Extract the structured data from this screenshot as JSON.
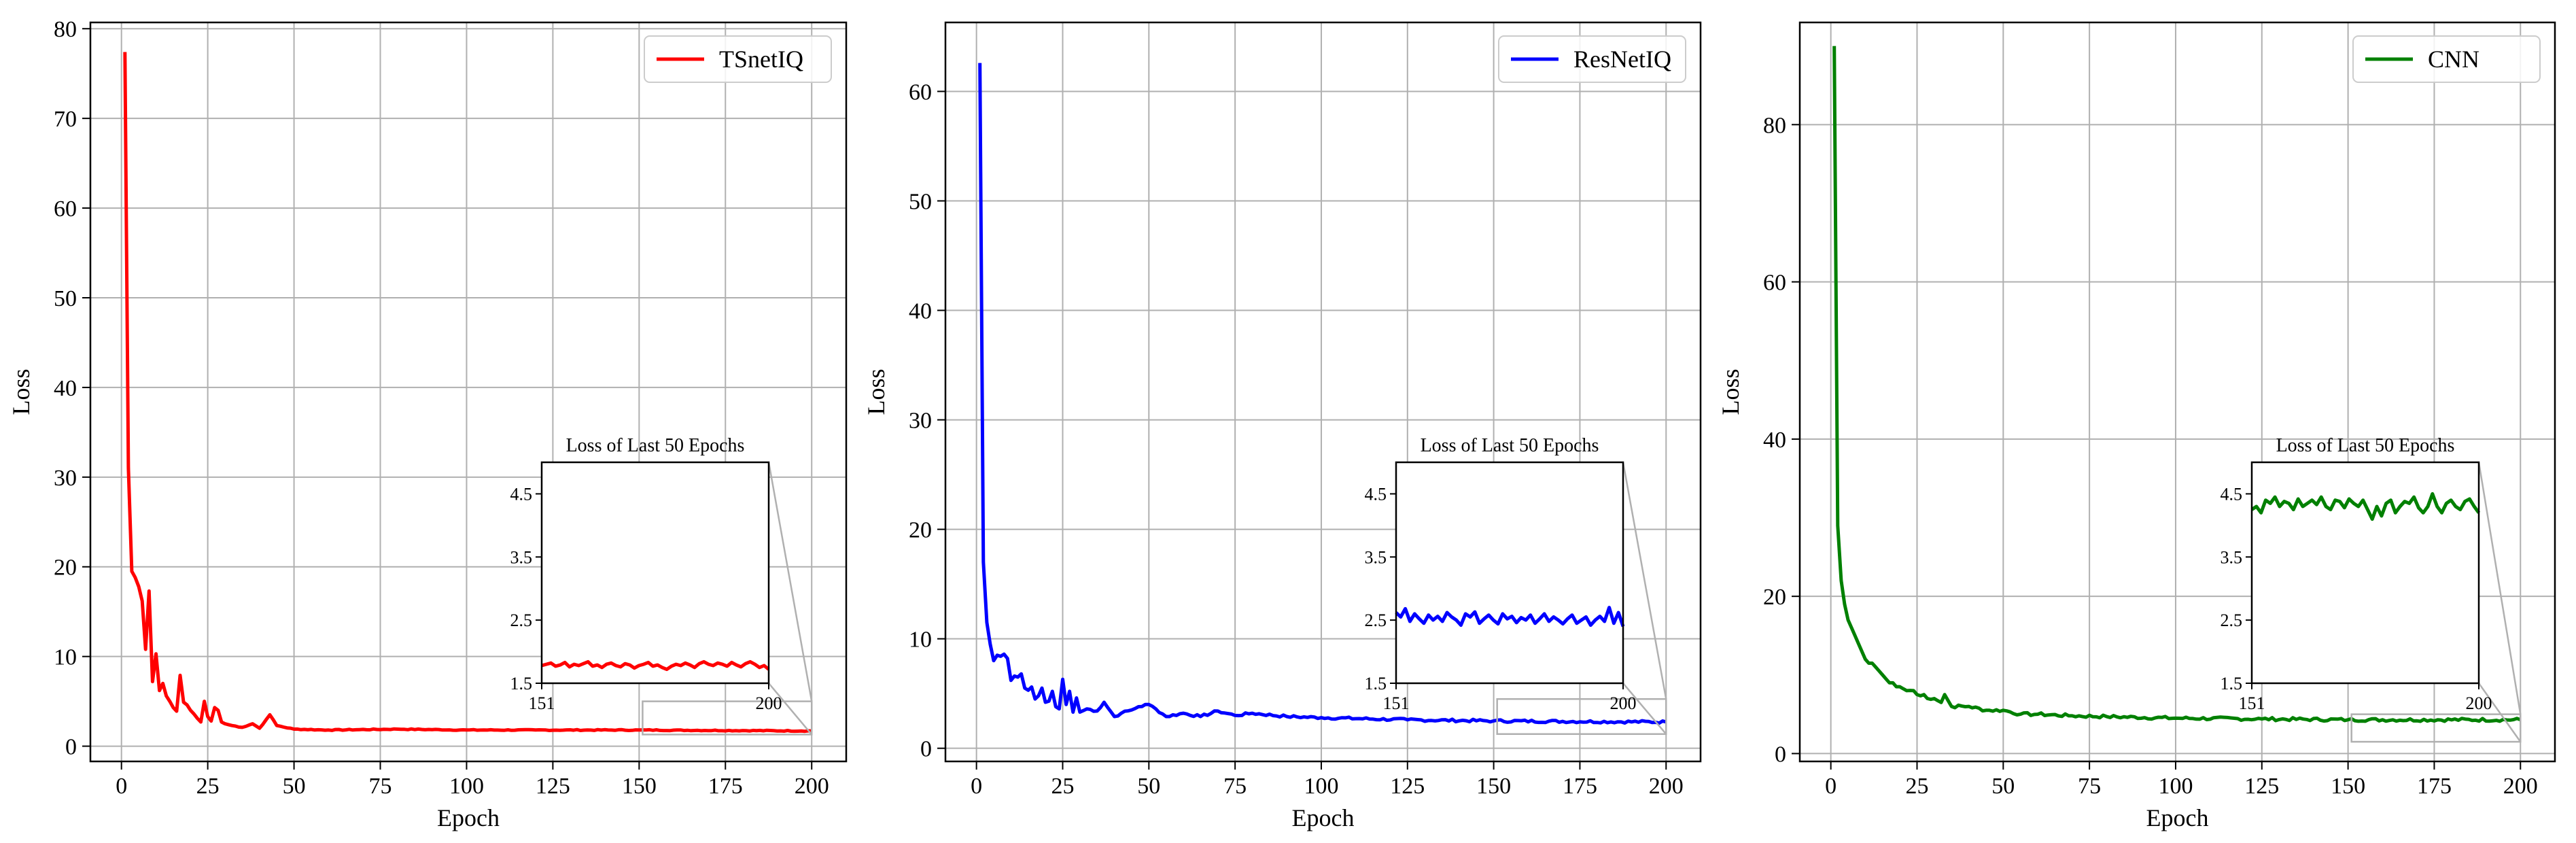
{
  "chart_data": [
    {
      "type": "line",
      "color": "#ff0000",
      "xlabel": "Epoch",
      "ylabel": "Loss",
      "xlim": [
        -9,
        210
      ],
      "ylim": [
        -1.7,
        80.7
      ],
      "xticks": [
        0,
        25,
        50,
        75,
        100,
        125,
        150,
        175,
        200
      ],
      "yticks": [
        0,
        10,
        20,
        30,
        40,
        50,
        60,
        70,
        80
      ],
      "grid": true,
      "legend_position": "top-right",
      "series": [
        {
          "name": "TSnetIQ"
        }
      ],
      "anchors": [
        [
          1,
          77.4
        ],
        [
          2,
          31
        ],
        [
          3,
          19.5
        ],
        [
          4,
          18.8
        ],
        [
          5,
          17.8
        ],
        [
          6,
          16.2
        ],
        [
          7,
          10.8
        ],
        [
          8,
          17.3
        ],
        [
          9,
          7.2
        ],
        [
          10,
          10.3
        ],
        [
          11,
          6.2
        ],
        [
          12,
          7.0
        ],
        [
          13,
          5.6
        ],
        [
          14,
          5.0
        ],
        [
          15,
          4.3
        ],
        [
          16,
          3.9
        ],
        [
          17,
          7.9
        ],
        [
          18,
          4.9
        ],
        [
          19,
          4.6
        ],
        [
          20,
          4.0
        ],
        [
          21,
          3.6
        ],
        [
          22,
          3.1
        ],
        [
          23,
          2.7
        ],
        [
          24,
          5.0
        ],
        [
          25,
          3.3
        ],
        [
          26,
          2.8
        ],
        [
          27,
          4.3
        ],
        [
          28,
          4.0
        ],
        [
          29,
          2.7
        ],
        [
          30,
          2.5
        ],
        [
          32,
          2.3
        ],
        [
          35,
          2.1
        ],
        [
          38,
          2.5
        ],
        [
          40,
          2.0
        ],
        [
          42,
          3.0
        ],
        [
          43,
          3.5
        ],
        [
          45,
          2.3
        ],
        [
          50,
          1.9
        ],
        [
          60,
          1.8
        ],
        [
          80,
          1.9
        ],
        [
          100,
          1.8
        ],
        [
          120,
          1.8
        ],
        [
          150,
          1.8
        ],
        [
          200,
          1.7
        ]
      ],
      "noise": 0.05,
      "inset": {
        "title": "Loss of Last 50 Epochs",
        "ylim": [
          1.5,
          5.0
        ],
        "yticks": [
          1.5,
          2.5,
          3.5,
          4.5
        ],
        "xlim": [
          151,
          200
        ],
        "xticks": [
          151,
          200
        ],
        "values": [
          1.78,
          1.8,
          1.82,
          1.77,
          1.79,
          1.83,
          1.76,
          1.8,
          1.78,
          1.81,
          1.84,
          1.77,
          1.79,
          1.75,
          1.8,
          1.82,
          1.78,
          1.76,
          1.81,
          1.79,
          1.74,
          1.78,
          1.8,
          1.83,
          1.77,
          1.79,
          1.75,
          1.72,
          1.77,
          1.8,
          1.78,
          1.82,
          1.79,
          1.75,
          1.81,
          1.84,
          1.8,
          1.78,
          1.82,
          1.8,
          1.77,
          1.83,
          1.79,
          1.76,
          1.81,
          1.84,
          1.8,
          1.75,
          1.78,
          1.72
        ],
        "zoom_box_ylim": [
          1.3,
          5.0
        ]
      }
    },
    {
      "type": "line",
      "color": "#0000ff",
      "xlabel": "Epoch",
      "ylabel": "Loss",
      "xlim": [
        -9,
        210
      ],
      "ylim": [
        -1.2,
        66.3
      ],
      "xticks": [
        0,
        25,
        50,
        75,
        100,
        125,
        150,
        175,
        200
      ],
      "yticks": [
        0,
        10,
        20,
        30,
        40,
        50,
        60
      ],
      "grid": true,
      "legend_position": "top-right",
      "series": [
        {
          "name": "ResNetIQ"
        }
      ],
      "anchors": [
        [
          1,
          62.6
        ],
        [
          2,
          17
        ],
        [
          3,
          11.5
        ],
        [
          4,
          9.5
        ],
        [
          5,
          8.0
        ],
        [
          6,
          8.5
        ],
        [
          7,
          8.4
        ],
        [
          8,
          8.6
        ],
        [
          9,
          8.2
        ],
        [
          10,
          6.2
        ],
        [
          11,
          6.6
        ],
        [
          12,
          6.5
        ],
        [
          13,
          6.8
        ],
        [
          14,
          5.5
        ],
        [
          15,
          5.3
        ],
        [
          16,
          5.6
        ],
        [
          17,
          4.5
        ],
        [
          18,
          4.8
        ],
        [
          19,
          5.5
        ],
        [
          20,
          4.2
        ],
        [
          21,
          4.3
        ],
        [
          22,
          5.2
        ],
        [
          23,
          3.8
        ],
        [
          24,
          3.6
        ],
        [
          25,
          6.3
        ],
        [
          26,
          4.0
        ],
        [
          27,
          5.2
        ],
        [
          28,
          3.3
        ],
        [
          29,
          4.6
        ],
        [
          30,
          3.3
        ],
        [
          32,
          3.6
        ],
        [
          35,
          3.4
        ],
        [
          37,
          4.2
        ],
        [
          40,
          2.9
        ],
        [
          42,
          3.2
        ],
        [
          45,
          3.5
        ],
        [
          47,
          3.8
        ],
        [
          50,
          4.0
        ],
        [
          52,
          3.6
        ],
        [
          55,
          2.9
        ],
        [
          60,
          3.2
        ],
        [
          65,
          2.9
        ],
        [
          70,
          3.4
        ],
        [
          75,
          3.0
        ],
        [
          80,
          3.2
        ],
        [
          90,
          2.9
        ],
        [
          100,
          2.8
        ],
        [
          125,
          2.6
        ],
        [
          150,
          2.5
        ],
        [
          200,
          2.4
        ]
      ],
      "noise": 0.12,
      "inset": {
        "title": "Loss of Last 50 Epochs",
        "ylim": [
          1.5,
          5.0
        ],
        "yticks": [
          1.5,
          2.5,
          3.5,
          4.5
        ],
        "xlim": [
          151,
          200
        ],
        "xticks": [
          151,
          200
        ],
        "values": [
          2.62,
          2.55,
          2.68,
          2.48,
          2.6,
          2.52,
          2.45,
          2.58,
          2.5,
          2.56,
          2.48,
          2.62,
          2.55,
          2.5,
          2.42,
          2.6,
          2.55,
          2.63,
          2.45,
          2.52,
          2.58,
          2.5,
          2.44,
          2.6,
          2.52,
          2.56,
          2.46,
          2.54,
          2.5,
          2.58,
          2.45,
          2.52,
          2.6,
          2.48,
          2.55,
          2.5,
          2.44,
          2.52,
          2.58,
          2.45,
          2.5,
          2.55,
          2.42,
          2.5,
          2.56,
          2.48,
          2.7,
          2.45,
          2.62,
          2.4
        ],
        "zoom_box_ylim": [
          1.3,
          4.5
        ]
      }
    },
    {
      "type": "line",
      "color": "#008000",
      "xlabel": "Epoch",
      "ylabel": "Loss",
      "xlim": [
        -9,
        210
      ],
      "ylim": [
        -1.0,
        93.0
      ],
      "xticks": [
        0,
        25,
        50,
        75,
        100,
        125,
        150,
        175,
        200
      ],
      "yticks": [
        0,
        20,
        40,
        60,
        80
      ],
      "grid": true,
      "legend_position": "top-right",
      "series": [
        {
          "name": "CNN"
        }
      ],
      "anchors": [
        [
          1,
          90
        ],
        [
          2,
          29
        ],
        [
          3,
          22
        ],
        [
          4,
          19
        ],
        [
          5,
          17
        ],
        [
          6,
          16
        ],
        [
          7,
          15
        ],
        [
          8,
          14
        ],
        [
          9,
          13
        ],
        [
          10,
          12
        ],
        [
          11,
          11.5
        ],
        [
          12,
          11.5
        ],
        [
          13,
          11
        ],
        [
          14,
          10.5
        ],
        [
          15,
          10
        ],
        [
          16,
          9.5
        ],
        [
          17,
          9
        ],
        [
          18,
          9
        ],
        [
          19,
          8.5
        ],
        [
          20,
          8.5
        ],
        [
          22,
          8
        ],
        [
          24,
          8
        ],
        [
          25,
          7.5
        ],
        [
          27,
          7.5
        ],
        [
          28,
          7
        ],
        [
          30,
          7
        ],
        [
          32,
          6.5
        ],
        [
          33,
          7.5
        ],
        [
          35,
          6
        ],
        [
          40,
          6
        ],
        [
          45,
          5.5
        ],
        [
          50,
          5.5
        ],
        [
          55,
          5
        ],
        [
          60,
          5
        ],
        [
          70,
          4.8
        ],
        [
          80,
          4.7
        ],
        [
          100,
          4.5
        ],
        [
          125,
          4.4
        ],
        [
          150,
          4.3
        ],
        [
          200,
          4.3
        ]
      ],
      "noise": 0.2,
      "inset": {
        "title": "Loss of Last 50 Epochs",
        "ylim": [
          1.5,
          5.0
        ],
        "yticks": [
          1.5,
          2.5,
          3.5,
          4.5
        ],
        "xlim": [
          151,
          200
        ],
        "xticks": [
          151,
          200
        ],
        "values": [
          4.25,
          4.3,
          4.2,
          4.4,
          4.35,
          4.45,
          4.3,
          4.38,
          4.35,
          4.25,
          4.42,
          4.3,
          4.35,
          4.4,
          4.33,
          4.45,
          4.3,
          4.25,
          4.4,
          4.38,
          4.28,
          4.42,
          4.35,
          4.3,
          4.4,
          4.25,
          4.1,
          4.3,
          4.15,
          4.35,
          4.4,
          4.2,
          4.3,
          4.38,
          4.35,
          4.45,
          4.28,
          4.2,
          4.3,
          4.5,
          4.3,
          4.2,
          4.35,
          4.4,
          4.3,
          4.25,
          4.38,
          4.42,
          4.3,
          4.2
        ],
        "zoom_box_ylim": [
          1.5,
          5.0
        ]
      }
    }
  ]
}
